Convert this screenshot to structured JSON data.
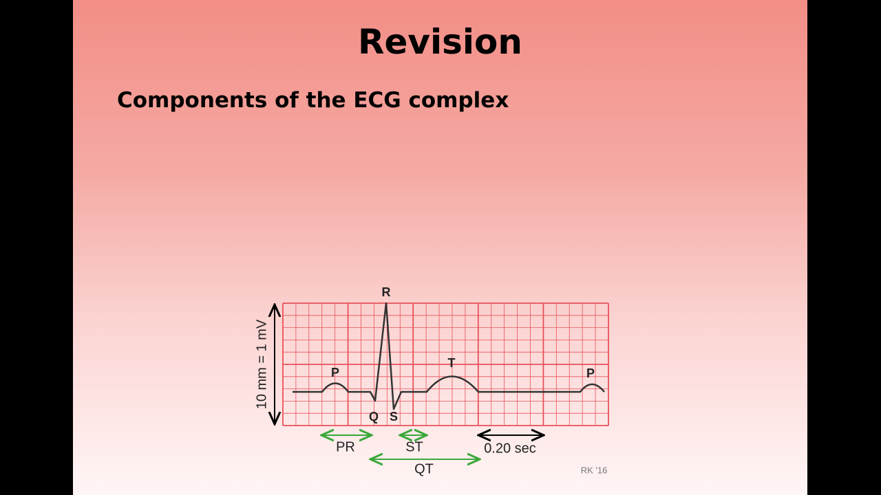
{
  "header": {
    "title": "Revision",
    "subtitle": "Components of the ECG complex"
  },
  "diagram": {
    "waves": [
      "R",
      "P",
      "T",
      "Q",
      "S",
      "P"
    ],
    "intervals": [
      "PR",
      "ST",
      "QT",
      "0.20 sec"
    ],
    "scale_label": "10 mm = 1 mV",
    "credit": "RK '16"
  }
}
